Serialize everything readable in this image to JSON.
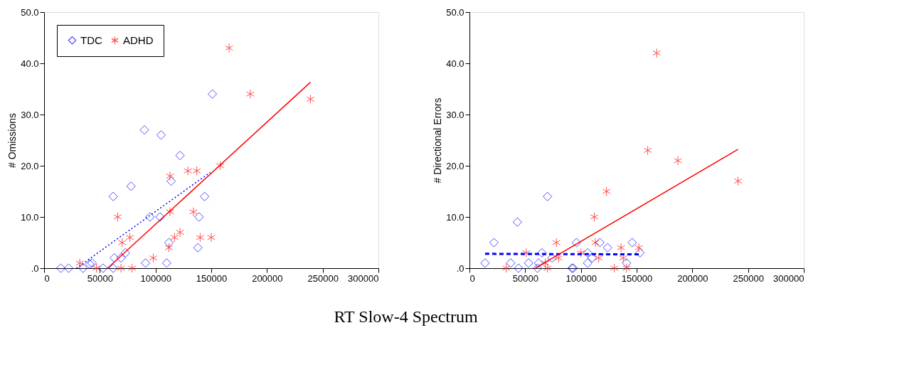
{
  "chart_data": [
    {
      "type": "scatter",
      "ylabel": "# Omissions",
      "xlabel": "RT Slow-4 Spectrum",
      "xlim": [
        0,
        300000
      ],
      "xticks": [
        0,
        50000,
        100000,
        150000,
        200000,
        250000,
        300000
      ],
      "ylim": [
        0,
        50
      ],
      "yticks": [
        {
          "value": 0,
          "label": ".0"
        },
        {
          "value": 10,
          "label": "10.0"
        },
        {
          "value": 20,
          "label": "20.0"
        },
        {
          "value": 30,
          "label": "30.0"
        },
        {
          "value": 40,
          "label": "40.0"
        },
        {
          "value": 50,
          "label": "50.0"
        }
      ],
      "grid": false,
      "legend": "top left",
      "series": [
        {
          "name": "TDC",
          "type": "scatter",
          "marker": "diamond",
          "color": "#0000ff",
          "x": [
            15000,
            22000,
            35000,
            41000,
            43000,
            53000,
            62000,
            62000,
            63000,
            69000,
            73000,
            78000,
            90000,
            91000,
            95000,
            104000,
            105000,
            112000,
            110000,
            114000,
            122000,
            138000,
            139000,
            144000,
            151000
          ],
          "values": [
            0,
            0,
            0,
            0.8,
            1,
            0,
            0,
            14,
            2,
            2,
            3,
            16,
            27,
            1,
            10,
            10,
            26,
            5,
            1,
            17,
            22,
            4,
            10,
            14,
            34
          ]
        },
        {
          "name": "ADHD",
          "type": "scatter",
          "marker": "cross",
          "color": "#ff0000",
          "x": [
            32000,
            47000,
            66000,
            70000,
            77000,
            69000,
            79000,
            98000,
            112000,
            113000,
            113000,
            117000,
            122000,
            129000,
            137000,
            134000,
            140000,
            150000,
            158000,
            166000,
            185000,
            239000
          ],
          "values": [
            1,
            0,
            10,
            5,
            6,
            0,
            0,
            2,
            4,
            18,
            11,
            6,
            7,
            19,
            19,
            11,
            6,
            6,
            20,
            43,
            34,
            33
          ]
        },
        {
          "type": "line",
          "line_style": "dotted",
          "color": "#0000ff",
          "x": [
            29000,
            149000
          ],
          "values": [
            0,
            18.7
          ]
        },
        {
          "type": "line",
          "line_style": "solid",
          "color": "#ff0000",
          "x": [
            57000,
            239000
          ],
          "values": [
            0,
            36.3
          ]
        }
      ]
    },
    {
      "type": "scatter",
      "ylabel": "# Directional Errors",
      "xlim": [
        0,
        300000
      ],
      "xticks": [
        0,
        50000,
        100000,
        150000,
        200000,
        250000,
        300000
      ],
      "ylim": [
        0,
        50
      ],
      "yticks": [
        {
          "value": 0,
          "label": ".0"
        },
        {
          "value": 10,
          "label": "10.0"
        },
        {
          "value": 20,
          "label": "20.0"
        },
        {
          "value": 30,
          "label": "30.0"
        },
        {
          "value": 40,
          "label": "40.0"
        },
        {
          "value": 50,
          "label": "50.0"
        }
      ],
      "grid": false,
      "legend": false,
      "series": [
        {
          "type": "scatter",
          "marker": "diamond",
          "color": "#0000ff",
          "x": [
            14000,
            22000,
            43000,
            70000,
            37000,
            44000,
            53000,
            61000,
            65000,
            62000,
            74000,
            92000,
            93000,
            96000,
            106000,
            106000,
            110000,
            117000,
            124000,
            146000,
            141000,
            153000
          ],
          "values": [
            1,
            5,
            9,
            14,
            1,
            0,
            1,
            0,
            3,
            1,
            2,
            0,
            0,
            5,
            1,
            3,
            2,
            5,
            4,
            5,
            1,
            3
          ]
        },
        {
          "type": "scatter",
          "marker": "cross",
          "color": "#ff0000",
          "x": [
            33000,
            51000,
            68000,
            70000,
            78000,
            80000,
            100000,
            112000,
            113000,
            123000,
            116000,
            130000,
            136000,
            141000,
            138000,
            152000,
            160000,
            168000,
            187000,
            241000
          ],
          "values": [
            0,
            3,
            1,
            0,
            5,
            2,
            3,
            10,
            5,
            15,
            2,
            0,
            4,
            0,
            2,
            4,
            23,
            42,
            21,
            17
          ]
        },
        {
          "type": "line",
          "line_style": "dashed",
          "color": "#0000ff",
          "x": [
            14000,
            152000
          ],
          "values": [
            2.8,
            2.7
          ]
        },
        {
          "type": "line",
          "line_style": "solid",
          "color": "#ff0000",
          "x": [
            59000,
            241000
          ],
          "values": [
            0,
            23.2
          ]
        }
      ]
    }
  ]
}
